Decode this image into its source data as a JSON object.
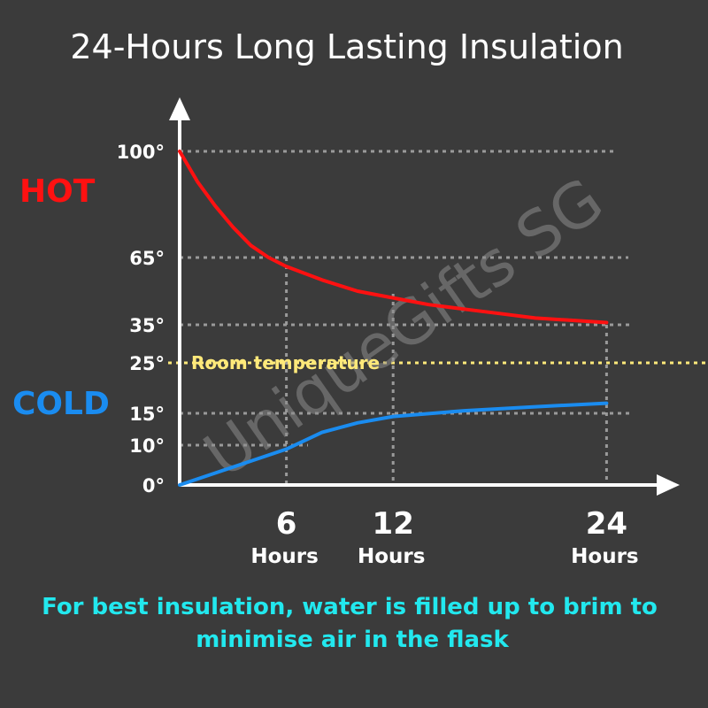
{
  "chart_data": {
    "type": "line",
    "title": "24-Hours Long Lasting Insulation",
    "xlabel": "",
    "ylabel": "",
    "x_ticks": [
      {
        "value": 6,
        "label": "6",
        "unit": "Hours"
      },
      {
        "value": 12,
        "label": "12",
        "unit": "Hours"
      },
      {
        "value": 24,
        "label": "24",
        "unit": "Hours"
      }
    ],
    "y_ticks": [
      {
        "value": 100,
        "label": "100°"
      },
      {
        "value": 65,
        "label": "65°"
      },
      {
        "value": 35,
        "label": "35°"
      },
      {
        "value": 25,
        "label": "25°"
      },
      {
        "value": 15,
        "label": "15°"
      },
      {
        "value": 10,
        "label": "10°"
      },
      {
        "value": 0,
        "label": "0°"
      }
    ],
    "series": [
      {
        "name": "HOT",
        "color": "#ff1111",
        "x": [
          0,
          1,
          2,
          3,
          4,
          5,
          6,
          8,
          10,
          12,
          14,
          16,
          18,
          20,
          22,
          24
        ],
        "y": [
          100,
          90,
          82,
          75,
          69,
          65,
          61,
          55,
          50,
          47,
          44,
          42,
          40,
          38,
          37,
          36
        ]
      },
      {
        "name": "COLD",
        "color": "#1a8cf0",
        "x": [
          0,
          2,
          4,
          6,
          8,
          10,
          12,
          16,
          20,
          24
        ],
        "y": [
          0,
          3,
          6,
          9,
          12,
          13.5,
          14.5,
          15.5,
          16.3,
          17
        ]
      }
    ],
    "reference_line": {
      "value": 25,
      "label": "Room temperature",
      "color": "#ffe97a"
    },
    "grid": "dotted",
    "legend": "left side labels"
  },
  "note_lines": [
    "For best insulation, water is filled up to brim to",
    "minimise air in the flask"
  ],
  "watermark": "UniqueGifts SG",
  "colors": {
    "background": "#3b3b3b",
    "axis": "#ffffff",
    "grid": "#9a9a9a",
    "note": "#22e8ee"
  }
}
